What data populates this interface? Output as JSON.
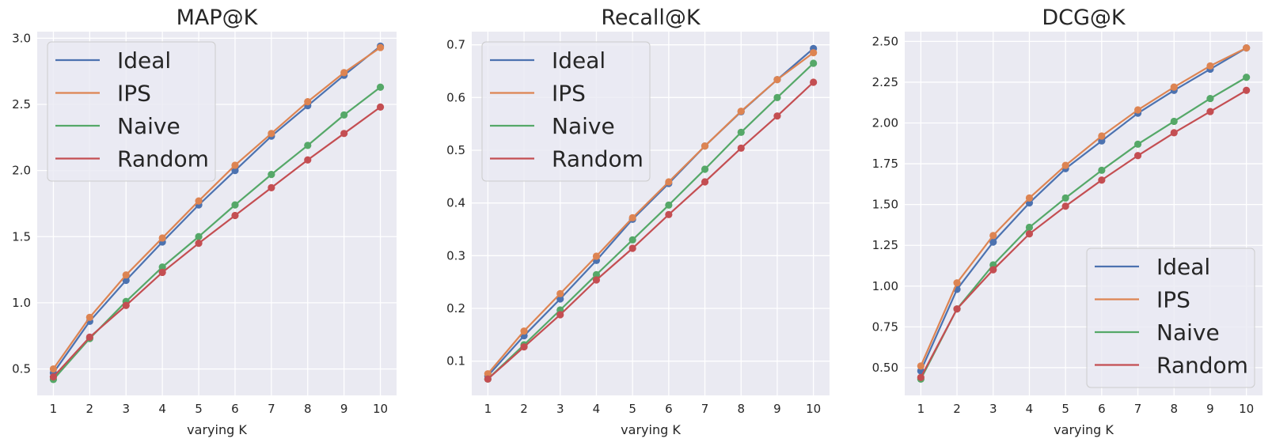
{
  "colors": {
    "panel_bg": "#eaeaf2",
    "grid": "#ffffff",
    "ideal": "#4c72b0",
    "ips": "#dd8452",
    "naive": "#55a868",
    "random": "#c44e52"
  },
  "chart_data": [
    {
      "type": "line",
      "title": "MAP@K",
      "xlabel": "varying K",
      "ylabel": "",
      "x": [
        1,
        2,
        3,
        4,
        5,
        6,
        7,
        8,
        9,
        10
      ],
      "xticks": [
        "1",
        "2",
        "3",
        "4",
        "5",
        "6",
        "7",
        "8",
        "9",
        "10"
      ],
      "ylim": [
        0.3,
        3.05
      ],
      "yticks": [
        "0.5",
        "1.0",
        "1.5",
        "2.0",
        "2.5",
        "3.0"
      ],
      "grid": true,
      "legend": "top-left",
      "series": [
        {
          "name": "Ideal",
          "values": [
            0.47,
            0.86,
            1.17,
            1.46,
            1.74,
            2.0,
            2.26,
            2.49,
            2.72,
            2.94
          ]
        },
        {
          "name": "IPS",
          "values": [
            0.5,
            0.89,
            1.21,
            1.49,
            1.77,
            2.04,
            2.28,
            2.52,
            2.74,
            2.93
          ]
        },
        {
          "name": "Naive",
          "values": [
            0.42,
            0.73,
            1.01,
            1.27,
            1.5,
            1.74,
            1.97,
            2.19,
            2.42,
            2.63
          ]
        },
        {
          "name": "Random",
          "values": [
            0.44,
            0.74,
            0.98,
            1.23,
            1.45,
            1.66,
            1.87,
            2.08,
            2.28,
            2.48
          ]
        }
      ]
    },
    {
      "type": "line",
      "title": "Recall@K",
      "xlabel": "varying K",
      "ylabel": "",
      "x": [
        1,
        2,
        3,
        4,
        5,
        6,
        7,
        8,
        9,
        10
      ],
      "xticks": [
        "1",
        "2",
        "3",
        "4",
        "5",
        "6",
        "7",
        "8",
        "9",
        "10"
      ],
      "ylim": [
        0.035,
        0.725
      ],
      "yticks": [
        "0.1",
        "0.2",
        "0.3",
        "0.4",
        "0.5",
        "0.6",
        "0.7"
      ],
      "grid": true,
      "legend": "top-left",
      "series": [
        {
          "name": "Ideal",
          "values": [
            0.072,
            0.148,
            0.218,
            0.291,
            0.369,
            0.437,
            0.508,
            0.573,
            0.634,
            0.693
          ]
        },
        {
          "name": "IPS",
          "values": [
            0.076,
            0.157,
            0.228,
            0.299,
            0.372,
            0.44,
            0.508,
            0.574,
            0.634,
            0.685
          ]
        },
        {
          "name": "Naive",
          "values": [
            0.066,
            0.131,
            0.197,
            0.264,
            0.33,
            0.396,
            0.464,
            0.534,
            0.6,
            0.665
          ]
        },
        {
          "name": "Random",
          "values": [
            0.066,
            0.127,
            0.188,
            0.254,
            0.314,
            0.378,
            0.44,
            0.504,
            0.565,
            0.629
          ]
        }
      ]
    },
    {
      "type": "line",
      "title": "DCG@K",
      "xlabel": "varying K",
      "ylabel": "",
      "x": [
        1,
        2,
        3,
        4,
        5,
        6,
        7,
        8,
        9,
        10
      ],
      "xticks": [
        "1",
        "2",
        "3",
        "4",
        "5",
        "6",
        "7",
        "8",
        "9",
        "10"
      ],
      "ylim": [
        0.33,
        2.56
      ],
      "yticks": [
        "0.50",
        "0.75",
        "1.00",
        "1.25",
        "1.50",
        "1.75",
        "2.00",
        "2.25",
        "2.50"
      ],
      "grid": true,
      "legend": "bottom-right",
      "series": [
        {
          "name": "Ideal",
          "values": [
            0.48,
            0.98,
            1.27,
            1.51,
            1.72,
            1.89,
            2.06,
            2.2,
            2.33,
            2.46
          ]
        },
        {
          "name": "IPS",
          "values": [
            0.51,
            1.02,
            1.31,
            1.54,
            1.74,
            1.92,
            2.08,
            2.22,
            2.35,
            2.46
          ]
        },
        {
          "name": "Naive",
          "values": [
            0.43,
            0.86,
            1.13,
            1.36,
            1.54,
            1.71,
            1.87,
            2.01,
            2.15,
            2.28
          ]
        },
        {
          "name": "Random",
          "values": [
            0.44,
            0.86,
            1.1,
            1.32,
            1.49,
            1.65,
            1.8,
            1.94,
            2.07,
            2.2
          ]
        }
      ]
    }
  ]
}
